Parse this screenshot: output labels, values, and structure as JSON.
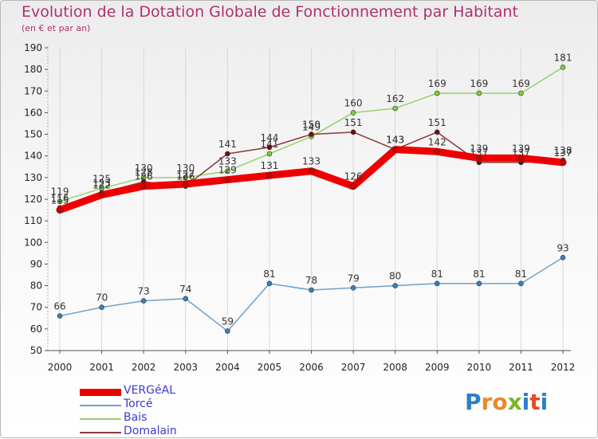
{
  "title": "Evolution de la Dotation Globale de Fonctionnement par Habitant",
  "subtitle": "(en € et par an)",
  "logo": {
    "text": "Proxiti",
    "letter_colors": [
      "#2a7fc9",
      "#e8892a",
      "#e8892a",
      "#7ab52a",
      "#2a7fc9",
      "#e84a2a",
      "#2a7fc9"
    ]
  },
  "chart_data": {
    "type": "line",
    "title": "Evolution de la Dotation Globale de Fonctionnement par Habitant",
    "ylabel": "(en € et par an)",
    "xlabel": "",
    "ylim": [
      50,
      190
    ],
    "yticks": [
      50,
      60,
      70,
      80,
      90,
      100,
      110,
      120,
      130,
      140,
      150,
      160,
      170,
      180,
      190
    ],
    "categories": [
      "2000",
      "2001",
      "2002",
      "2003",
      "2004",
      "2005",
      "2006",
      "2007",
      "2008",
      "2009",
      "2010",
      "2011",
      "2012"
    ],
    "grid": "vertical",
    "legend": "bottom-left",
    "series": [
      {
        "name": "Bais",
        "color": "#96d26e",
        "marker": "#7ed03a",
        "width": "thin",
        "values": [
          119,
          125,
          130,
          130,
          133,
          141,
          149,
          160,
          162,
          169,
          169,
          169,
          181
        ]
      },
      {
        "name": "Domalain",
        "color": "#8b3a3a",
        "marker": "#6e1010",
        "width": "thin",
        "values": [
          116,
          123,
          128,
          126,
          141,
          144,
          150,
          151,
          143,
          151,
          137,
          137,
          138
        ]
      },
      {
        "name": "Torcé",
        "color": "#6fa0cc",
        "marker": "#3b7fc0",
        "width": "thin",
        "values": [
          66,
          70,
          73,
          74,
          59,
          81,
          78,
          79,
          80,
          81,
          81,
          81,
          93
        ]
      },
      {
        "name": "VERGéAL",
        "color": "#ee0000",
        "marker": "#cc0000",
        "width": "thick",
        "values": [
          115,
          122,
          126,
          127,
          129,
          131,
          133,
          126,
          143,
          142,
          139,
          139,
          137
        ]
      }
    ]
  },
  "legend_order": [
    "VERGéAL",
    "Torcé",
    "Bais",
    "Domalain"
  ]
}
